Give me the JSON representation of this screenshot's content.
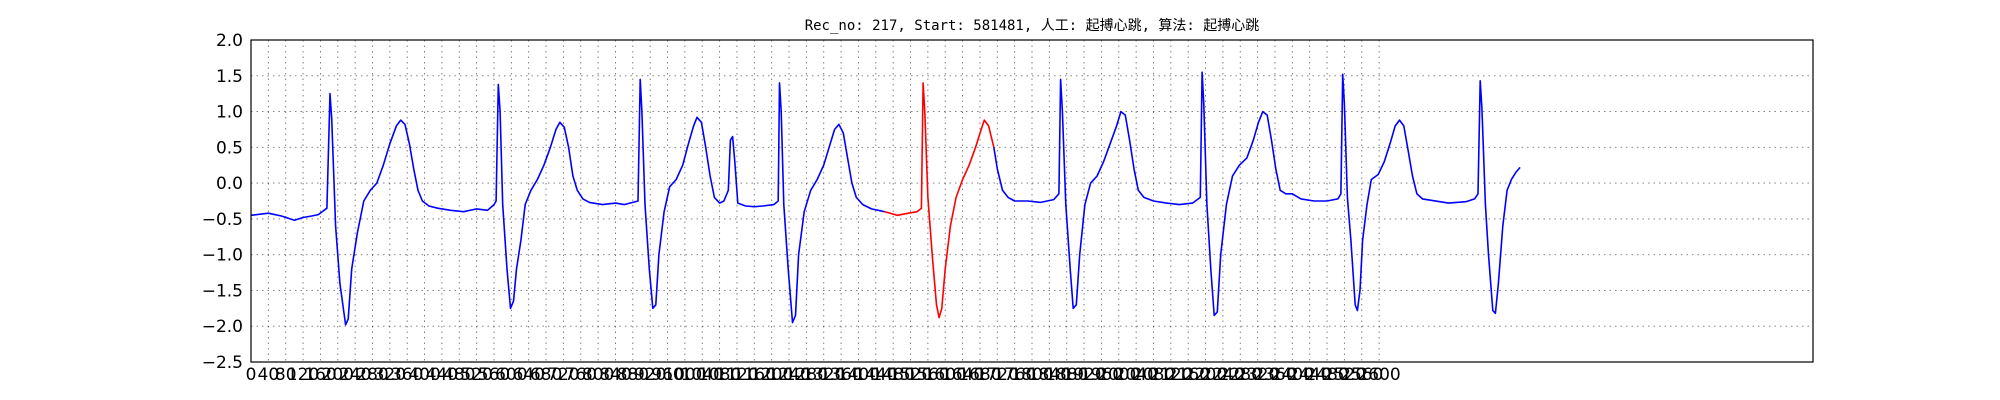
{
  "chart_data": {
    "type": "line",
    "title": "Rec_no: 217, Start: 581481, 人工: 起搏心跳, 算法: 起搏心跳",
    "xlabel": "",
    "ylabel": "",
    "xlim": [
      0,
      3600
    ],
    "ylim": [
      -2.5,
      2.0
    ],
    "grid": true,
    "yticks": [
      -2.5,
      -2.0,
      -1.5,
      -1.0,
      -0.5,
      0.0,
      0.5,
      1.0,
      1.5,
      2.0
    ],
    "ytick_labels": [
      "−2.5",
      "−2.0",
      "−1.5",
      "−1.0",
      "−0.5",
      "0.0",
      "0.5",
      "1.0",
      "1.5",
      "2.0"
    ],
    "xticks": [
      0,
      40,
      80,
      120,
      160,
      200,
      240,
      280,
      320,
      360,
      400,
      440,
      480,
      520,
      560,
      600,
      640,
      680,
      720,
      760,
      800,
      840,
      880,
      920,
      960,
      1000,
      1040,
      1080,
      1120,
      1160,
      1200,
      1240,
      1280,
      1320,
      1360,
      1400,
      1440,
      1480,
      1520,
      1560,
      1600,
      1640,
      1680,
      1720,
      1760,
      1800,
      1840,
      1880,
      1920,
      1960,
      2000,
      2040,
      2080,
      2120,
      2160,
      2200,
      2240,
      2280,
      2320,
      2360,
      2400,
      2440,
      2480,
      2520,
      2560,
      2600
    ],
    "series": [
      {
        "color": "#0000ff",
        "points": [
          [
            0,
            -0.45
          ],
          [
            40,
            -0.42
          ],
          [
            70,
            -0.46
          ],
          [
            100,
            -0.52
          ],
          [
            120,
            -0.48
          ],
          [
            140,
            -0.46
          ],
          [
            155,
            -0.44
          ],
          [
            175,
            -0.35
          ],
          [
            182,
            1.25
          ],
          [
            186,
            0.9
          ],
          [
            195,
            -0.6
          ],
          [
            205,
            -1.4
          ],
          [
            218,
            -1.98
          ],
          [
            224,
            -1.9
          ],
          [
            232,
            -1.2
          ],
          [
            245,
            -0.7
          ],
          [
            260,
            -0.25
          ],
          [
            275,
            -0.1
          ],
          [
            290,
            0.0
          ],
          [
            305,
            0.25
          ],
          [
            320,
            0.55
          ],
          [
            335,
            0.8
          ],
          [
            345,
            0.88
          ],
          [
            355,
            0.82
          ],
          [
            365,
            0.55
          ],
          [
            375,
            0.2
          ],
          [
            385,
            -0.1
          ],
          [
            395,
            -0.25
          ],
          [
            410,
            -0.32
          ],
          [
            430,
            -0.35
          ],
          [
            460,
            -0.38
          ],
          [
            490,
            -0.4
          ],
          [
            520,
            -0.36
          ],
          [
            545,
            -0.38
          ],
          [
            560,
            -0.3
          ],
          [
            565,
            -0.25
          ],
          [
            570,
            1.38
          ],
          [
            574,
            1.0
          ],
          [
            580,
            -0.3
          ],
          [
            590,
            -1.2
          ],
          [
            598,
            -1.75
          ],
          [
            605,
            -1.65
          ],
          [
            612,
            -1.2
          ],
          [
            622,
            -0.8
          ],
          [
            632,
            -0.3
          ],
          [
            645,
            -0.1
          ],
          [
            660,
            0.05
          ],
          [
            675,
            0.25
          ],
          [
            690,
            0.5
          ],
          [
            703,
            0.75
          ],
          [
            712,
            0.85
          ],
          [
            722,
            0.78
          ],
          [
            732,
            0.5
          ],
          [
            742,
            0.1
          ],
          [
            752,
            -0.1
          ],
          [
            765,
            -0.22
          ],
          [
            780,
            -0.27
          ],
          [
            810,
            -0.3
          ],
          [
            840,
            -0.28
          ],
          [
            860,
            -0.3
          ],
          [
            880,
            -0.27
          ],
          [
            892,
            -0.25
          ],
          [
            897,
            1.45
          ],
          [
            901,
            1.0
          ],
          [
            908,
            -0.3
          ],
          [
            918,
            -1.2
          ],
          [
            926,
            -1.75
          ],
          [
            933,
            -1.7
          ],
          [
            940,
            -1.0
          ],
          [
            952,
            -0.4
          ],
          [
            965,
            -0.05
          ],
          [
            980,
            0.05
          ],
          [
            995,
            0.25
          ],
          [
            1008,
            0.55
          ],
          [
            1020,
            0.8
          ],
          [
            1028,
            0.92
          ],
          [
            1038,
            0.85
          ],
          [
            1048,
            0.5
          ],
          [
            1058,
            0.1
          ],
          [
            1068,
            -0.2
          ],
          [
            1080,
            -0.28
          ],
          [
            1090,
            -0.25
          ],
          [
            1100,
            -0.1
          ],
          [
            1105,
            0.6
          ],
          [
            1110,
            0.65
          ],
          [
            1115,
            0.3
          ],
          [
            1122,
            -0.28
          ],
          [
            1140,
            -0.32
          ],
          [
            1160,
            -0.33
          ],
          [
            1180,
            -0.32
          ],
          [
            1205,
            -0.3
          ],
          [
            1215,
            -0.25
          ],
          [
            1218,
            1.4
          ],
          [
            1222,
            1.0
          ],
          [
            1228,
            -0.3
          ],
          [
            1238,
            -1.2
          ],
          [
            1248,
            -1.95
          ],
          [
            1255,
            -1.85
          ],
          [
            1262,
            -1.0
          ],
          [
            1275,
            -0.4
          ],
          [
            1290,
            -0.1
          ],
          [
            1305,
            0.05
          ],
          [
            1320,
            0.25
          ],
          [
            1335,
            0.55
          ],
          [
            1345,
            0.75
          ],
          [
            1355,
            0.82
          ],
          [
            1365,
            0.7
          ],
          [
            1375,
            0.35
          ],
          [
            1385,
            0.0
          ],
          [
            1395,
            -0.2
          ],
          [
            1410,
            -0.3
          ],
          [
            1430,
            -0.36
          ],
          [
            1460,
            -0.4
          ]
        ]
      },
      {
        "color": "#ff0000",
        "points": [
          [
            1460,
            -0.4
          ],
          [
            1490,
            -0.45
          ],
          [
            1515,
            -0.42
          ],
          [
            1535,
            -0.4
          ],
          [
            1545,
            -0.35
          ],
          [
            1549,
            1.4
          ],
          [
            1553,
            1.0
          ],
          [
            1560,
            -0.2
          ],
          [
            1570,
            -1.0
          ],
          [
            1580,
            -1.7
          ],
          [
            1586,
            -1.88
          ],
          [
            1592,
            -1.75
          ],
          [
            1600,
            -1.2
          ],
          [
            1612,
            -0.6
          ],
          [
            1625,
            -0.2
          ],
          [
            1640,
            0.05
          ],
          [
            1655,
            0.25
          ],
          [
            1670,
            0.5
          ],
          [
            1683,
            0.75
          ],
          [
            1690,
            0.88
          ],
          [
            1700,
            0.8
          ],
          [
            1708,
            0.6
          ],
          [
            1712,
            0.5
          ]
        ]
      },
      {
        "color": "#0000ff",
        "points": [
          [
            1712,
            0.5
          ],
          [
            1720,
            0.2
          ],
          [
            1732,
            -0.1
          ],
          [
            1745,
            -0.2
          ],
          [
            1760,
            -0.25
          ],
          [
            1790,
            -0.25
          ],
          [
            1820,
            -0.27
          ],
          [
            1850,
            -0.23
          ],
          [
            1862,
            -0.15
          ],
          [
            1866,
            1.45
          ],
          [
            1870,
            1.0
          ],
          [
            1878,
            -0.3
          ],
          [
            1888,
            -1.2
          ],
          [
            1895,
            -1.75
          ],
          [
            1902,
            -1.7
          ],
          [
            1910,
            -1.0
          ],
          [
            1922,
            -0.3
          ],
          [
            1935,
            0.0
          ],
          [
            1950,
            0.1
          ],
          [
            1965,
            0.3
          ],
          [
            1980,
            0.55
          ],
          [
            1995,
            0.8
          ],
          [
            2005,
            1.0
          ],
          [
            2015,
            0.95
          ],
          [
            2025,
            0.6
          ],
          [
            2035,
            0.2
          ],
          [
            2045,
            -0.1
          ],
          [
            2058,
            -0.2
          ],
          [
            2080,
            -0.25
          ],
          [
            2110,
            -0.28
          ],
          [
            2140,
            -0.3
          ],
          [
            2170,
            -0.28
          ],
          [
            2188,
            -0.2
          ],
          [
            2192,
            1.55
          ],
          [
            2196,
            1.1
          ],
          [
            2203,
            -0.3
          ],
          [
            2212,
            -1.2
          ],
          [
            2220,
            -1.85
          ],
          [
            2227,
            -1.8
          ],
          [
            2235,
            -1.0
          ],
          [
            2248,
            -0.3
          ],
          [
            2262,
            0.1
          ],
          [
            2278,
            0.25
          ],
          [
            2295,
            0.35
          ],
          [
            2310,
            0.6
          ],
          [
            2322,
            0.85
          ],
          [
            2332,
            1.0
          ],
          [
            2342,
            0.95
          ],
          [
            2352,
            0.6
          ],
          [
            2362,
            0.2
          ],
          [
            2372,
            -0.1
          ],
          [
            2385,
            -0.15
          ],
          [
            2400,
            -0.15
          ],
          [
            2420,
            -0.22
          ],
          [
            2450,
            -0.25
          ],
          [
            2480,
            -0.25
          ],
          [
            2505,
            -0.22
          ],
          [
            2512,
            -0.15
          ],
          [
            2516,
            1.52
          ],
          [
            2520,
            1.1
          ],
          [
            2527,
            -0.2
          ],
          [
            2535,
            -0.8
          ],
          [
            2545,
            -1.7
          ],
          [
            2550,
            -1.78
          ],
          [
            2556,
            -1.5
          ],
          [
            2562,
            -0.8
          ],
          [
            2572,
            -0.3
          ],
          [
            2582,
            0.05
          ],
          [
            2598,
            0.12
          ],
          [
            2612,
            0.3
          ],
          [
            2625,
            0.55
          ],
          [
            2637,
            0.8
          ],
          [
            2647,
            0.88
          ],
          [
            2657,
            0.8
          ],
          [
            2667,
            0.45
          ],
          [
            2677,
            0.1
          ],
          [
            2687,
            -0.15
          ],
          [
            2700,
            -0.22
          ],
          [
            2720,
            -0.24
          ],
          [
            2760,
            -0.28
          ],
          [
            2800,
            -0.26
          ],
          [
            2820,
            -0.22
          ],
          [
            2828,
            -0.15
          ],
          [
            2833,
            1.43
          ],
          [
            2837,
            1.05
          ],
          [
            2845,
            -0.3
          ],
          [
            2852,
            -1.0
          ],
          [
            2862,
            -1.78
          ],
          [
            2868,
            -1.82
          ],
          [
            2875,
            -1.4
          ],
          [
            2885,
            -0.6
          ],
          [
            2895,
            -0.1
          ],
          [
            2905,
            0.05
          ],
          [
            2915,
            0.15
          ],
          [
            2925,
            0.22
          ]
        ]
      }
    ]
  }
}
